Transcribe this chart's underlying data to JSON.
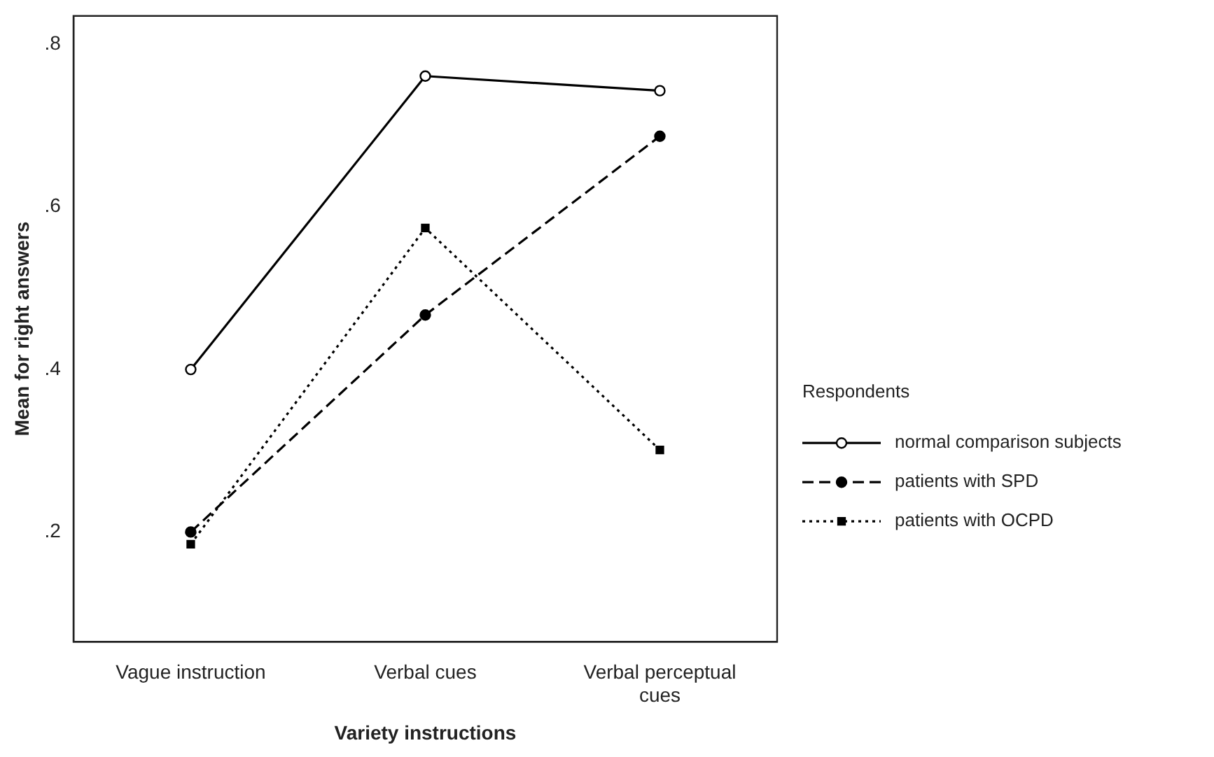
{
  "chart_data": {
    "type": "line",
    "xlabel": "Variety instructions",
    "ylabel": "Mean for right answers",
    "legend_title": "Respondents",
    "legend": "right",
    "grid": false,
    "categories": [
      "Vague instruction",
      "Verbal cues",
      "Verbal perceptual cues"
    ],
    "ylim": [
      0.065,
      0.835
    ],
    "yticks": [
      {
        "value": 0.2,
        "label": ".2"
      },
      {
        "value": 0.4,
        "label": ".4"
      },
      {
        "value": 0.6,
        "label": ".6"
      },
      {
        "value": 0.8,
        "label": ".8"
      }
    ],
    "series": [
      {
        "name": "normal comparison subjects",
        "color": "#000000",
        "line_style": "solid",
        "marker": "circle",
        "values": [
          0.4,
          0.761,
          0.743
        ]
      },
      {
        "name": "patients with SPD",
        "color": "#000000",
        "line_style": "dashed",
        "marker": "circle",
        "values": [
          0.2,
          0.467,
          0.687
        ]
      },
      {
        "name": "patients with OCPD",
        "color": "#000000",
        "line_style": "dotted",
        "marker": "square",
        "values": [
          0.185,
          0.574,
          0.301
        ]
      }
    ]
  }
}
